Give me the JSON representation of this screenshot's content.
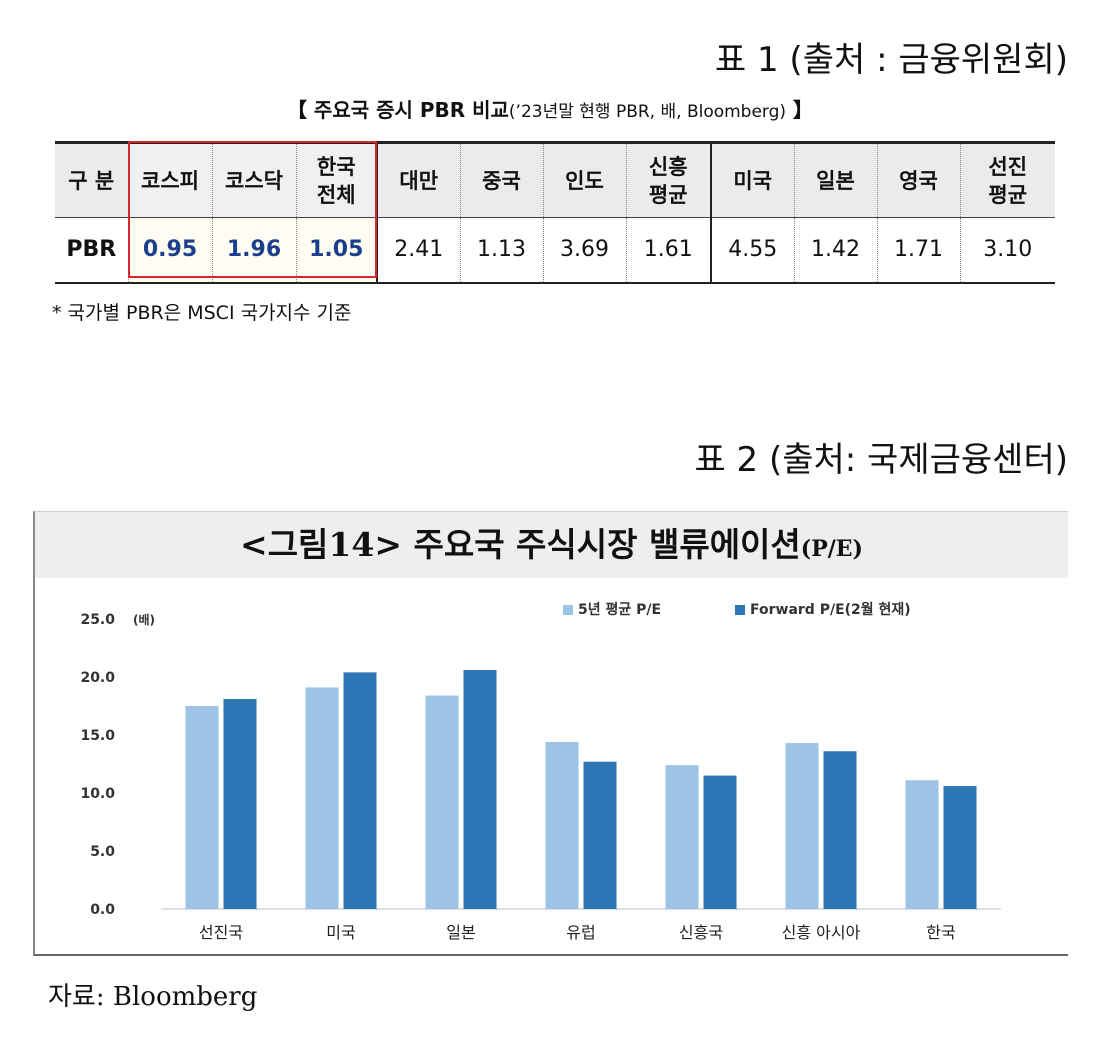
{
  "table1": {
    "source_title": "표 1 (출처 : 금융위원회)",
    "caption_main": "【 주요국 증시 PBR 비교",
    "caption_sub": "(’23년말 현행 PBR, 배, Bloomberg)",
    "caption_end": " 】",
    "header_label": "구 분",
    "row_label": "PBR",
    "columns": [
      {
        "label": "코스피",
        "value": "0.95",
        "group": "kr"
      },
      {
        "label": "코스닥",
        "value": "1.96",
        "group": "kr"
      },
      {
        "label": "한국\n전체",
        "value": "1.05",
        "group": "kr"
      },
      {
        "label": "대만",
        "value": "2.41",
        "group": "em"
      },
      {
        "label": "중국",
        "value": "1.13",
        "group": "em"
      },
      {
        "label": "인도",
        "value": "3.69",
        "group": "em"
      },
      {
        "label": "신흥\n평균",
        "value": "1.61",
        "group": "em"
      },
      {
        "label": "미국",
        "value": "4.55",
        "group": "dm"
      },
      {
        "label": "일본",
        "value": "1.42",
        "group": "dm"
      },
      {
        "label": "영국",
        "value": "1.71",
        "group": "dm"
      },
      {
        "label": "선진\n평균",
        "value": "3.10",
        "group": "dm"
      }
    ],
    "footnote": "* 국가별 PBR은 MSCI 국가지수 기준",
    "highlight_color": "#d9262c",
    "korea_value_color": "#1c3f8c"
  },
  "table2": {
    "source_title": "표 2 (출처: 국제금융센터)",
    "data_source": "자료: Bloomberg"
  },
  "chart_data": {
    "type": "bar",
    "title_main": "<그림14> 주요국 주식시장 밸류에이션",
    "title_suffix": "(P/E)",
    "unit_label": "(배)",
    "categories": [
      "선진국",
      "미국",
      "일본",
      "유럽",
      "신흥국",
      "신흥 아시아",
      "한국"
    ],
    "series": [
      {
        "name": "5년 평균 P/E",
        "color": "#9dc3e6",
        "values": [
          17.5,
          19.1,
          18.4,
          14.4,
          12.4,
          14.3,
          11.1
        ]
      },
      {
        "name": "Forward P/E(2월 현재)",
        "color": "#2e75b6",
        "values": [
          18.1,
          20.4,
          20.6,
          12.7,
          11.5,
          13.6,
          10.6
        ]
      }
    ],
    "ylim": [
      0,
      25
    ],
    "yticks": [
      "0.0",
      "5.0",
      "10.0",
      "15.0",
      "20.0",
      "25.0"
    ],
    "grid": false,
    "legend_position": "top-right"
  }
}
